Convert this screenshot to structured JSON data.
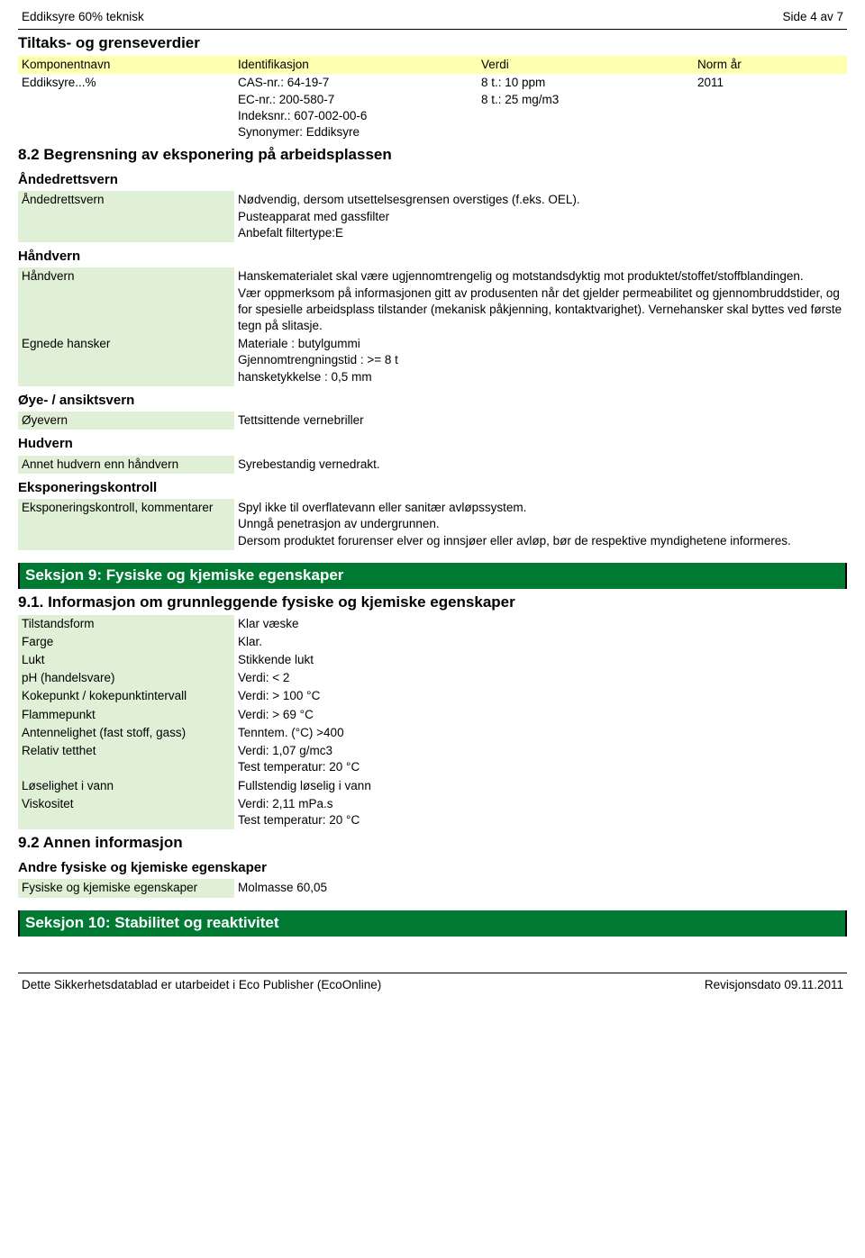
{
  "header": {
    "product": "Eddiksyre 60% teknisk",
    "page": "Side 4 av 7"
  },
  "tiltak": {
    "title": "Tiltaks- og grenseverdier",
    "columns": {
      "c1": "Komponentnavn",
      "c2": "Identifikasjon",
      "c3": "Verdi",
      "c4": "Norm år"
    },
    "row": {
      "name": "Eddiksyre...%",
      "id_line1": "CAS-nr.: 64-19-7",
      "id_line2": "EC-nr.: 200-580-7",
      "id_line3": "Indeksnr.: 607-002-00-6",
      "id_line4": "Synonymer: Eddiksyre",
      "val_line1": "8 t.: 10 ppm",
      "val_line2": "8 t.: 25 mg/m3",
      "year": "2011"
    }
  },
  "s82_title": "8.2 Begrensning av eksponering på arbeidsplassen",
  "andedrett": {
    "heading": "Åndedrettsvern",
    "label": "Åndedrettsvern",
    "text": "Nødvendig, dersom utsettelsesgrensen overstiges (f.eks. OEL).\nPusteapparat med gassfilter\nAnbefalt filtertype:E"
  },
  "handvern": {
    "heading": "Håndvern",
    "r1_label": "Håndvern",
    "r1_text": "Hanskematerialet skal være ugjennomtrengelig og motstandsdyktig mot produktet/stoffet/stoffblandingen.\nVær oppmerksom på informasjonen gitt av produsenten når det gjelder permeabilitet og gjennombruddstider, og for spesielle arbeidsplass tilstander (mekanisk påkjenning, kontaktvarighet). Vernehansker skal byttes ved første tegn på slitasje.",
    "r2_label": "Egnede hansker",
    "r2_text": "Materiale : butylgummi\nGjennomtrengningstid : >= 8 t\nhansketykkelse : 0,5 mm"
  },
  "oye": {
    "heading": "Øye- / ansiktsvern",
    "label": "Øyevern",
    "text": "Tettsittende vernebriller"
  },
  "hud": {
    "heading": "Hudvern",
    "label": "Annet hudvern enn håndvern",
    "text": "Syrebestandig vernedrakt."
  },
  "eksp": {
    "heading": "Eksponeringskontroll",
    "label": "Eksponeringskontroll, kommentarer",
    "text": "Spyl ikke til overflatevann eller sanitær avløpssystem.\nUnngå penetrasjon av undergrunnen.\nDersom produktet forurenser elver og innsjøer eller avløp, bør de respektive myndighetene informeres."
  },
  "s9": {
    "bar": "Seksjon 9: Fysiske og kjemiske egenskaper",
    "s91_title": "9.1. Informasjon om grunnleggende fysiske og kjemiske egenskaper",
    "props": {
      "tilstand_l": "Tilstandsform",
      "tilstand_v": "Klar væske",
      "farge_l": "Farge",
      "farge_v": "Klar.",
      "lukt_l": "Lukt",
      "lukt_v": "Stikkende lukt",
      "ph_l": "pH (handelsvare)",
      "ph_v": "Verdi: < 2",
      "koke_l": "Kokepunkt / kokepunktintervall",
      "koke_v": "Verdi: > 100 °C",
      "flamme_l": "Flammepunkt",
      "flamme_v": "Verdi: > 69 °C",
      "antenn_l": "Antennelighet (fast stoff, gass)",
      "antenn_v": "Tenntem. (°C) >400",
      "tett_l": "Relativ tetthet",
      "tett_v": "Verdi: 1,07 g/mc3\nTest temperatur: 20 °C",
      "losl_l": "Løselighet i vann",
      "losl_v": "Fullstendig løselig i vann",
      "visk_l": "Viskositet",
      "visk_v": "Verdi: 2,11 mPa.s\nTest temperatur: 20 °C"
    },
    "s92_title": "9.2 Annen informasjon",
    "andre_title": "Andre fysiske og kjemiske egenskaper",
    "andre_label": "Fysiske og kjemiske egenskaper",
    "andre_val": "Molmasse 60,05"
  },
  "s10_bar": "Seksjon 10: Stabilitet og reaktivitet",
  "footer": {
    "left": "Dette Sikkerhetsdatablad er utarbeidet i Eco Publisher (EcoOnline)",
    "right": "Revisjonsdato 09.11.2011"
  }
}
